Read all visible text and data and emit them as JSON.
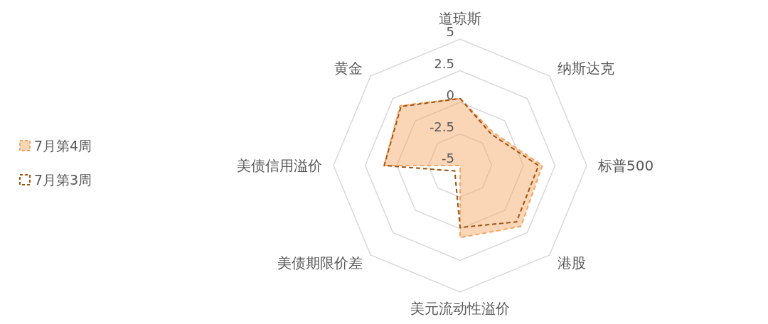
{
  "chart_data": {
    "type": "radar",
    "categories": [
      "道琼斯",
      "纳斯达克",
      "标普500",
      "港股",
      "美元流动性溢价",
      "美债期限价差",
      "美债信用溢价",
      "黄金"
    ],
    "ylim": [
      -5,
      5
    ],
    "yticks": [
      -5,
      -2.5,
      0,
      2.5,
      5
    ],
    "legend": "left",
    "line_style": "dashed",
    "grid": true,
    "series": [
      {
        "name": "7月第4周",
        "color": "#f4a460",
        "type": "area",
        "values": [
          0.3,
          -1.3,
          1.5,
          1.8,
          0.7,
          -5,
          1.0,
          1.7
        ]
      },
      {
        "name": "7月第3周",
        "color": "#a0520f",
        "values": [
          0.3,
          -1.5,
          1.2,
          1.3,
          -0.1,
          -4.4,
          1.0,
          1.6
        ]
      }
    ]
  }
}
